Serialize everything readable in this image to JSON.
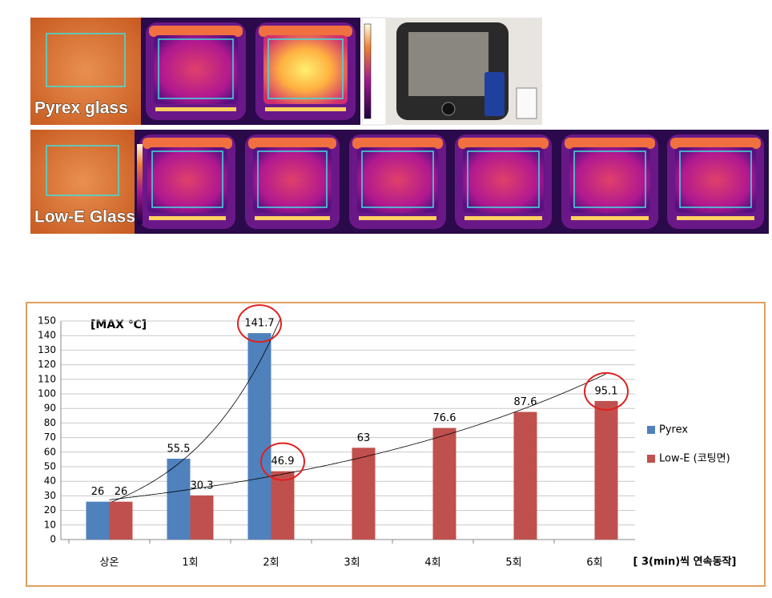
{
  "images": {
    "pyrex_label": "Pyrex glass",
    "lowe_label": "Low-E Glass"
  },
  "chart_data": {
    "type": "bar",
    "y_label": "[MAX ℃]",
    "x_label": "[ 3(min)씩 연속동작]",
    "categories": [
      "상온",
      "1회",
      "2회",
      "3회",
      "4회",
      "5회",
      "6회"
    ],
    "series": [
      {
        "name": "Pyrex",
        "color": "#4f81bd",
        "values": [
          26,
          55.5,
          141.7,
          null,
          null,
          null,
          null
        ]
      },
      {
        "name": "Low-E (코팅면)",
        "color": "#c0504d",
        "values": [
          26,
          30.3,
          46.9,
          63,
          76.6,
          87.6,
          95.1
        ]
      }
    ],
    "ylim": [
      0,
      150
    ],
    "yticks": [
      0,
      10,
      20,
      30,
      40,
      50,
      60,
      70,
      80,
      90,
      100,
      110,
      120,
      130,
      140,
      150
    ],
    "grid": true,
    "legend": "right"
  }
}
